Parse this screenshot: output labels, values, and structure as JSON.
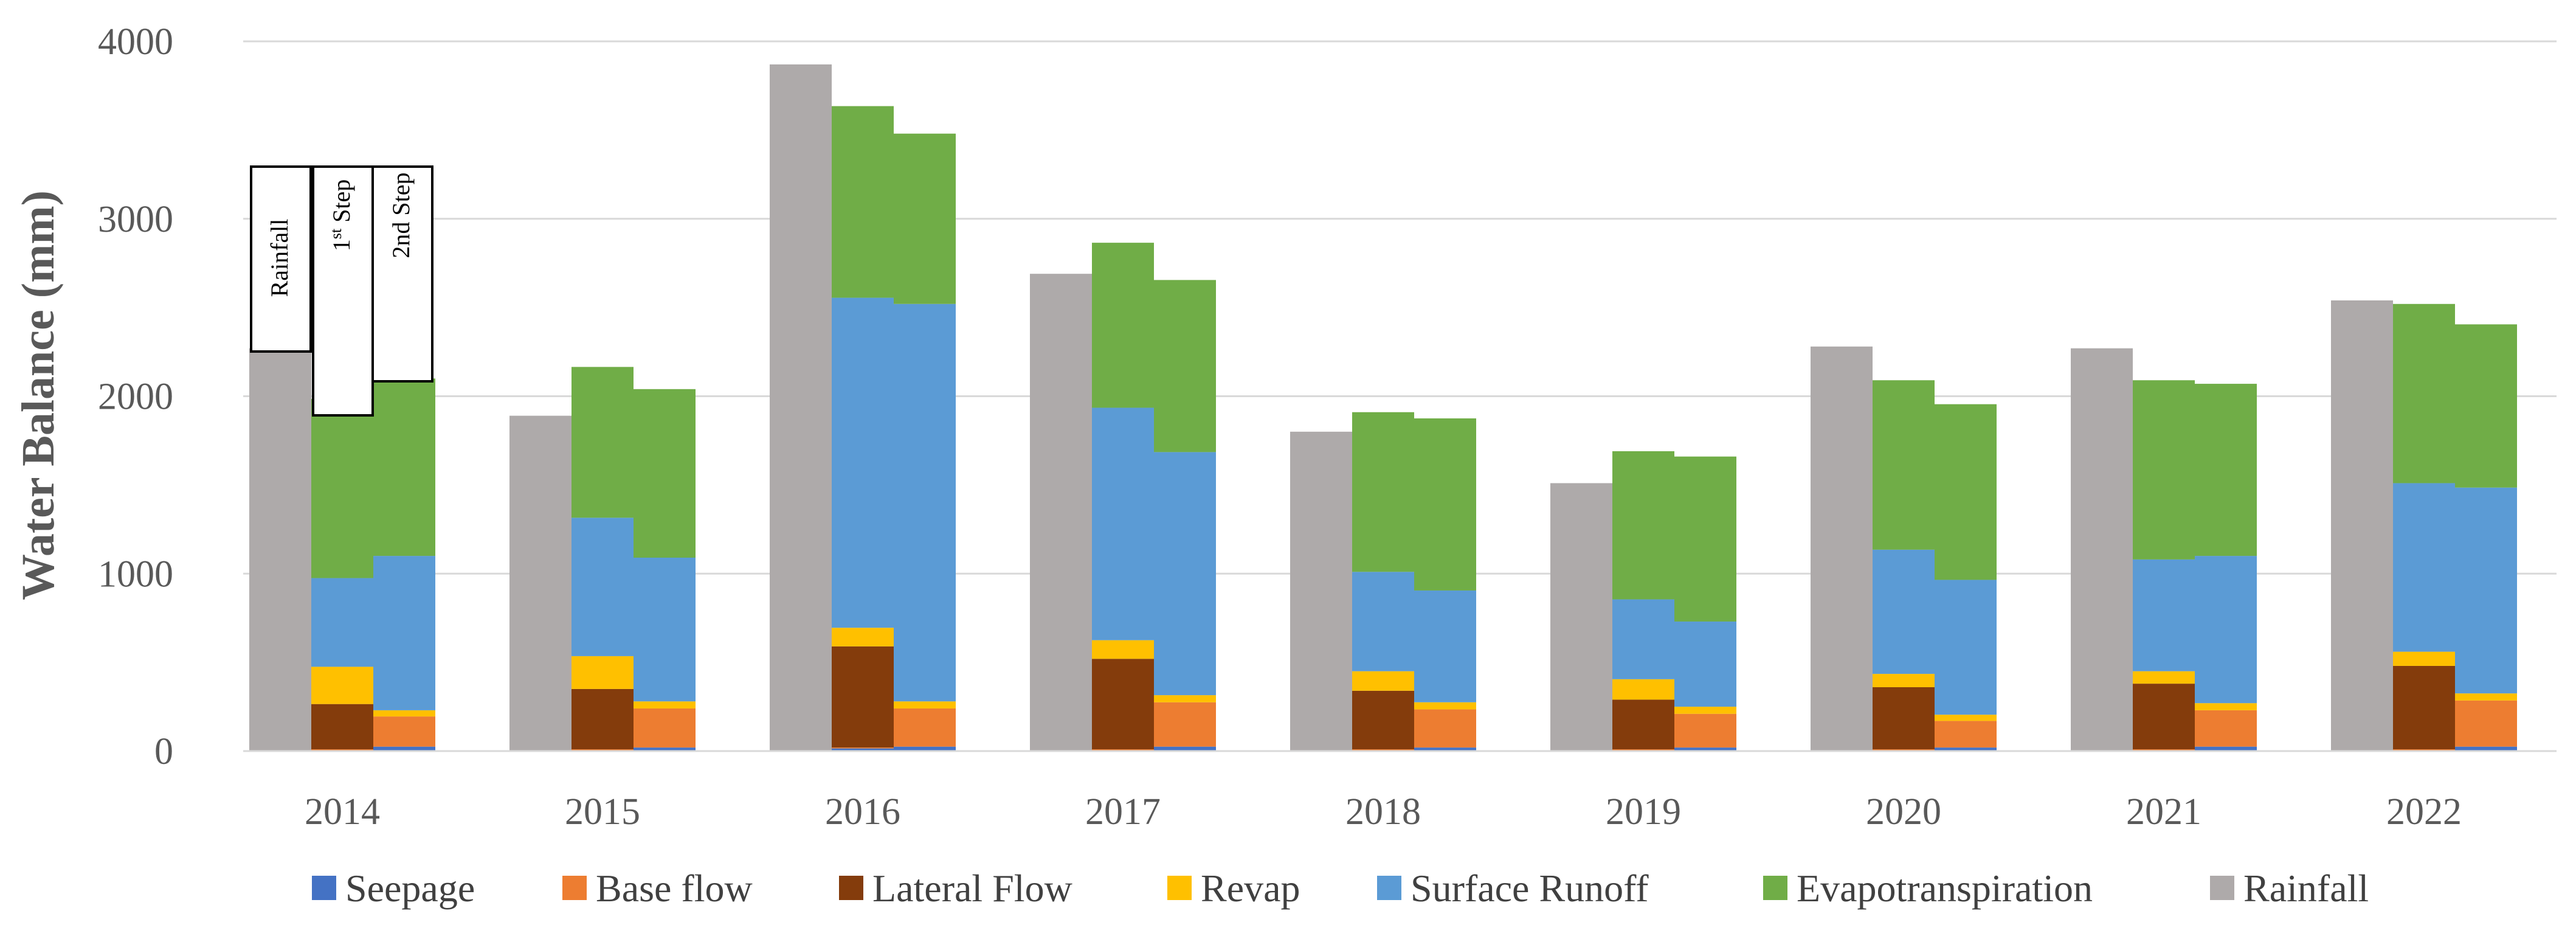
{
  "chart_data": {
    "type": "bar",
    "subtype": "grouped-stacked",
    "title": "",
    "xlabel": "",
    "ylabel": "Water Balance (mm)",
    "ylim": [
      0,
      4000
    ],
    "yticks": [
      0,
      1000,
      2000,
      3000,
      4000
    ],
    "grid": true,
    "legend_position": "bottom",
    "categories": [
      "2014",
      "2015",
      "2016",
      "2017",
      "2018",
      "2019",
      "2020",
      "2021",
      "2022"
    ],
    "bar_groups": [
      "Rainfall",
      "1st Step",
      "2nd Step"
    ],
    "annotations": {
      "rainfall": "Rainfall",
      "first_step_main": "1",
      "first_step_sup": "st",
      "first_step_rest": " Step",
      "second_step": "2nd Step"
    },
    "series": [
      {
        "name": "Seepage",
        "color": "#4472C4",
        "first_step": [
          5,
          5,
          15,
          5,
          5,
          5,
          5,
          5,
          5
        ],
        "second_step": [
          25,
          20,
          25,
          25,
          20,
          20,
          20,
          25,
          25
        ]
      },
      {
        "name": "Base flow",
        "color": "#ED7D31",
        "first_step": [
          5,
          5,
          5,
          5,
          5,
          5,
          5,
          5,
          5
        ],
        "second_step": [
          170,
          220,
          215,
          250,
          215,
          190,
          150,
          205,
          260
        ]
      },
      {
        "name": "Lateral Flow",
        "color": "#843C0C",
        "first_step": [
          255,
          340,
          570,
          510,
          330,
          280,
          350,
          370,
          470
        ]
      },
      {
        "name": "Revap",
        "color": "#FFC000",
        "first_step": [
          210,
          185,
          105,
          105,
          110,
          115,
          75,
          70,
          80
        ],
        "second_step": [
          35,
          40,
          40,
          40,
          40,
          40,
          35,
          40,
          40
        ]
      },
      {
        "name": "Surface Runoff",
        "color": "#5B9BD5",
        "first_step": [
          500,
          780,
          1860,
          1310,
          560,
          450,
          700,
          630,
          950
        ],
        "second_step": [
          870,
          810,
          2240,
          1370,
          630,
          480,
          760,
          830,
          1160
        ]
      },
      {
        "name": "Evapotranspiration",
        "color": "#70AD47",
        "first_step": [
          1010,
          850,
          1080,
          930,
          900,
          835,
          955,
          1010,
          1010
        ],
        "second_step": [
          1000,
          950,
          960,
          970,
          970,
          930,
          990,
          970,
          920
        ]
      },
      {
        "name": "Rainfall",
        "color": "#AEAAAA",
        "rainfall": [
          2270,
          1890,
          3870,
          2690,
          1800,
          1510,
          2280,
          2270,
          2540
        ]
      }
    ]
  }
}
